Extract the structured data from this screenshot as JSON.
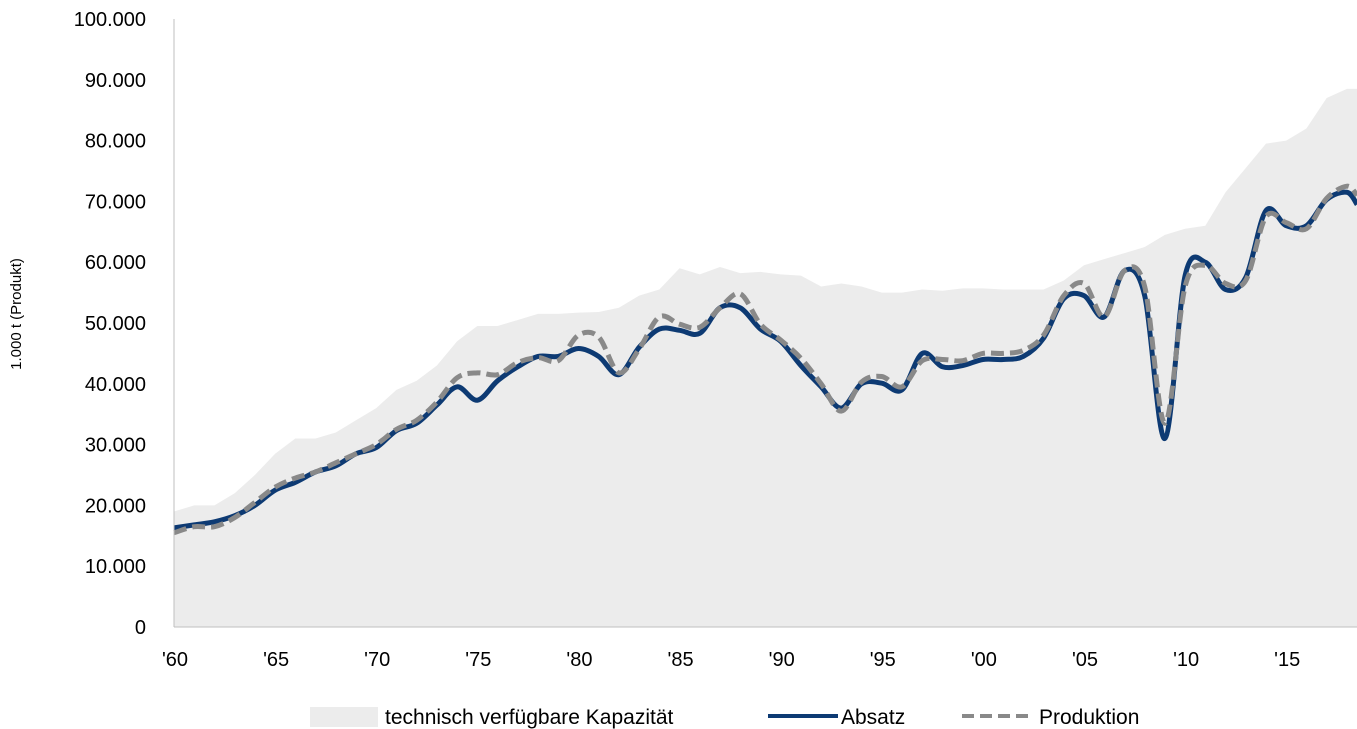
{
  "chart_data": {
    "type": "area",
    "title": "",
    "xlabel": "",
    "ylabel": "1.000 t (Produkt)",
    "xlim": [
      1960,
      2018.5
    ],
    "ylim": [
      0,
      100000
    ],
    "y_ticks": [
      0,
      10000,
      20000,
      30000,
      40000,
      50000,
      60000,
      70000,
      80000,
      90000,
      100000
    ],
    "y_tick_labels": [
      "0",
      "10.000",
      "20.000",
      "30.000",
      "40.000",
      "50.000",
      "60.000",
      "70.000",
      "80.000",
      "90.000",
      "100.000"
    ],
    "x_ticks": [
      1960,
      1965,
      1970,
      1975,
      1980,
      1985,
      1990,
      1995,
      2000,
      2005,
      2010,
      2015
    ],
    "x_tick_labels": [
      "'60",
      "'65",
      "'70",
      "'75",
      "'80",
      "'85",
      "'90",
      "'95",
      "'00",
      "'05",
      "'10",
      "'15"
    ],
    "grid": false,
    "legend_position": "bottom",
    "x": [
      1960,
      1961,
      1962,
      1963,
      1964,
      1965,
      1966,
      1967,
      1968,
      1969,
      1970,
      1971,
      1972,
      1973,
      1974,
      1975,
      1976,
      1977,
      1978,
      1979,
      1980,
      1981,
      1982,
      1983,
      1984,
      1985,
      1986,
      1987,
      1988,
      1989,
      1990,
      1991,
      1992,
      1993,
      1994,
      1995,
      1996,
      1997,
      1998,
      1999,
      2000,
      2001,
      2002,
      2003,
      2004,
      2005,
      2006,
      2007,
      2008,
      2009,
      2010,
      2011,
      2012,
      2013,
      2014,
      2015,
      2016,
      2017,
      2018,
      2018.5
    ],
    "series": [
      {
        "name": "technisch verfügbare Kapazität",
        "style": "area",
        "color": "#ececec",
        "values": [
          19000,
          20000,
          20000,
          22000,
          25000,
          28500,
          31000,
          31000,
          32000,
          34000,
          36000,
          39000,
          40500,
          43000,
          47000,
          49500,
          49500,
          50500,
          51500,
          51500,
          51700,
          51800,
          52500,
          54500,
          55500,
          59000,
          58000,
          59200,
          58200,
          58400,
          58000,
          57800,
          56000,
          56500,
          56000,
          55000,
          55000,
          55500,
          55300,
          55700,
          55700,
          55500,
          55500,
          55500,
          57000,
          59500,
          60500,
          61500,
          62500,
          64500,
          65500,
          66000,
          71500,
          75500,
          79500,
          80000,
          82000,
          87000,
          88500,
          88500
        ]
      },
      {
        "name": "Absatz",
        "style": "solid",
        "color": "#0d3a73",
        "values": [
          16300,
          16800,
          17300,
          18300,
          20000,
          22500,
          23800,
          25500,
          26500,
          28500,
          29500,
          32300,
          33500,
          36500,
          39500,
          37300,
          40500,
          42800,
          44500,
          44500,
          45800,
          44500,
          41500,
          46000,
          49000,
          48800,
          48300,
          52500,
          52500,
          49000,
          47000,
          43000,
          39500,
          36000,
          40000,
          40100,
          39000,
          45000,
          42800,
          43000,
          44000,
          44000,
          44500,
          47500,
          54000,
          54500,
          51000,
          58600,
          54500,
          31000,
          57800,
          60000,
          55500,
          57500,
          68500,
          66000,
          66000,
          70300,
          71500,
          69500
        ]
      },
      {
        "name": "Produktion",
        "style": "dashed",
        "color": "#898989",
        "values": [
          15500,
          16500,
          16500,
          18000,
          20500,
          23000,
          24500,
          25500,
          27000,
          28500,
          30000,
          32500,
          34000,
          37000,
          41000,
          41800,
          41500,
          43500,
          44300,
          43800,
          48000,
          47700,
          41800,
          45700,
          51000,
          49800,
          49300,
          52500,
          54800,
          49800,
          47200,
          44200,
          40000,
          35500,
          40300,
          41200,
          39500,
          43800,
          44000,
          43800,
          45000,
          45000,
          45500,
          48000,
          54500,
          56500,
          51000,
          58600,
          56000,
          33500,
          56000,
          59500,
          56500,
          57000,
          67500,
          66500,
          65500,
          70500,
          72500,
          71000
        ]
      }
    ]
  }
}
